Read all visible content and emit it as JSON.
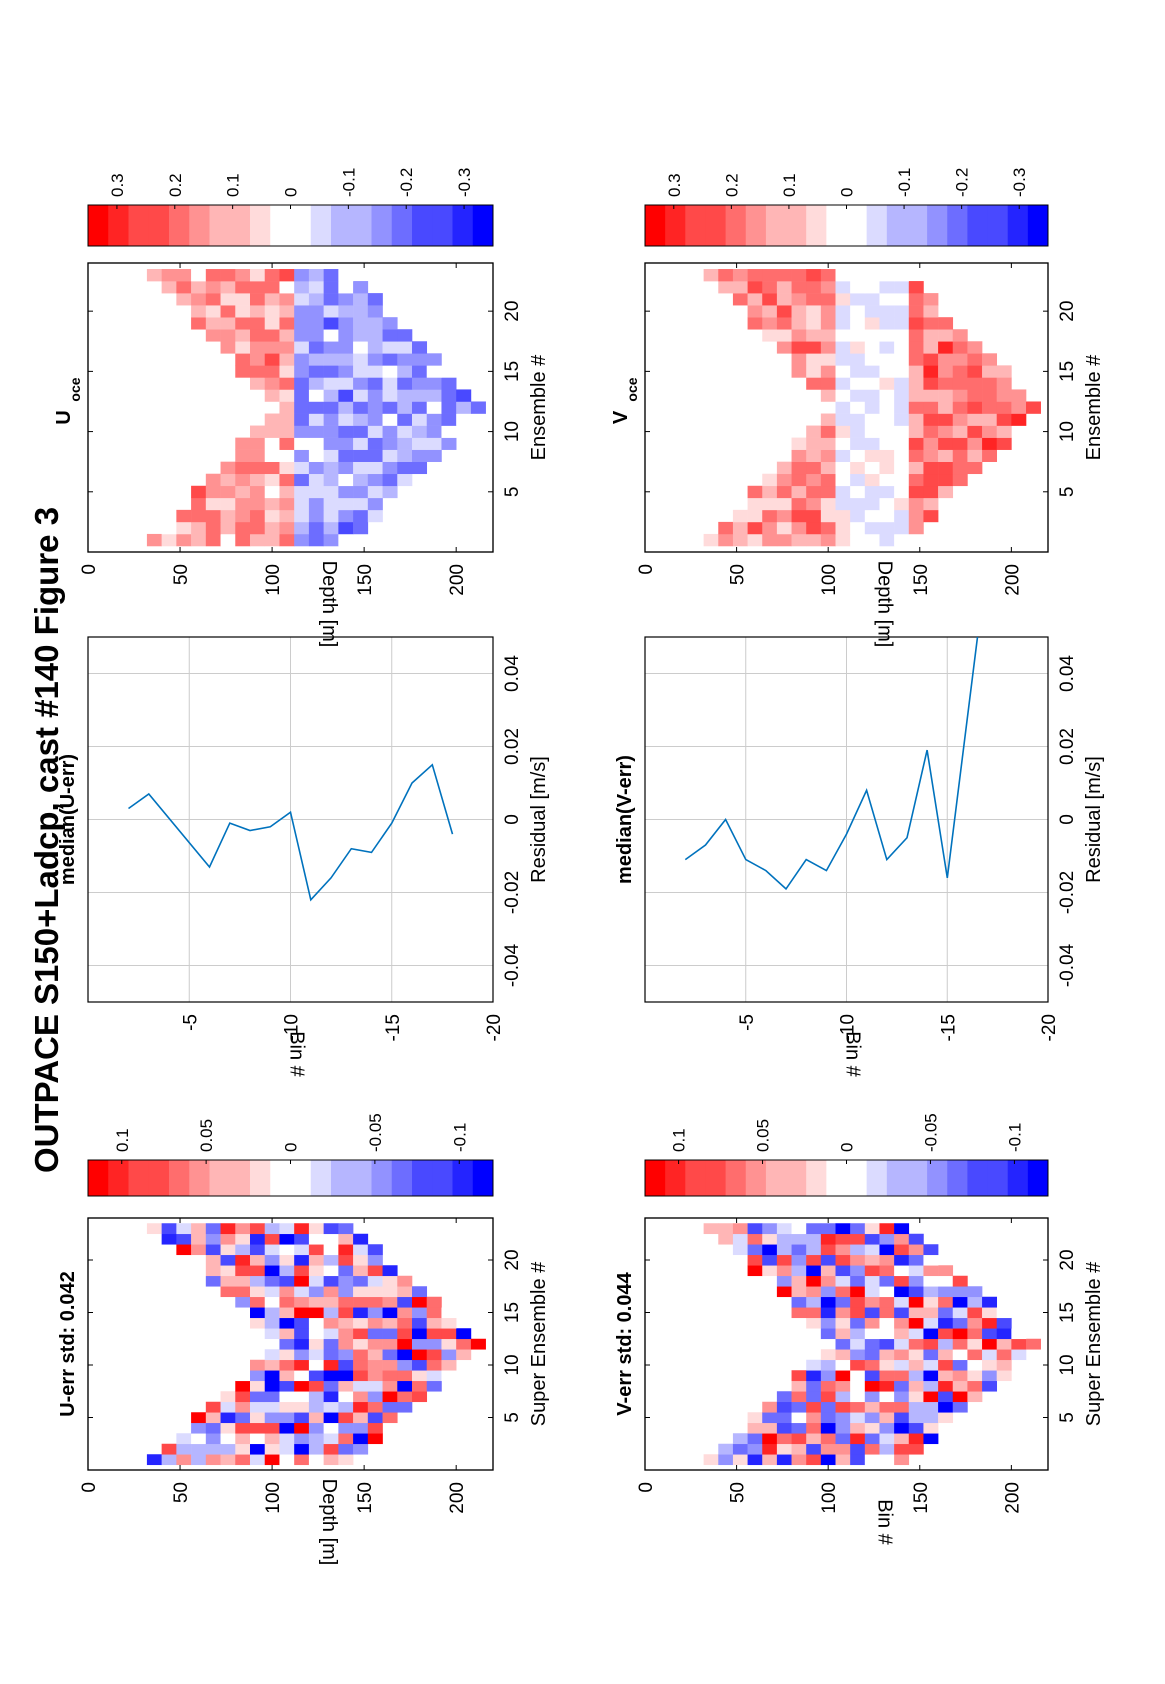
{
  "figure": {
    "title": "OUTPACE S150+Ladcp, cast #140  Figure 3"
  },
  "chart_data": [
    {
      "type": "heatmap",
      "id": "uerr",
      "title": "U-err std: 0.042",
      "xlabel": "Super Ensemble #",
      "ylabel": "Depth [m]",
      "xlim": [
        0,
        24
      ],
      "ylim": [
        0,
        220
      ],
      "xticks": [
        "5",
        "10",
        "15",
        "20"
      ],
      "yticks": [
        "0",
        "50",
        "100",
        "150",
        "200"
      ],
      "colorbar": {
        "min": -0.12,
        "max": 0.12,
        "ticks": [
          "0.1",
          "0.05",
          "0",
          "-0.05",
          "-0.1"
        ]
      }
    },
    {
      "type": "line",
      "id": "median-uerr",
      "title": "median(U-err)",
      "xlabel": "Residual [m/s]",
      "ylabel": "Bin #",
      "xlim": [
        -0.05,
        0.05
      ],
      "ylim": [
        -20,
        0
      ],
      "xticks": [
        "-0.04",
        "-0.02",
        "0",
        "0.02",
        "0.04"
      ],
      "yticks": [
        "-5",
        "-10",
        "-15",
        "-20"
      ],
      "series": [
        {
          "x": [
            0.003,
            0.007,
            -0.013,
            -0.001,
            -0.003,
            -0.002,
            0.002,
            -0.022,
            -0.016,
            -0.008,
            -0.009,
            -0.001,
            0.01,
            0.015,
            -0.004
          ],
          "y": [
            -2,
            -3,
            -6,
            -7,
            -8,
            -9,
            -10,
            -11,
            -12,
            -13,
            -14,
            -15,
            -16,
            -17,
            -18
          ]
        }
      ]
    },
    {
      "type": "heatmap",
      "id": "uoce",
      "title": "U",
      "title_subscript": "oce",
      "xlabel": "Ensemble #",
      "ylabel": "Depth [m]",
      "xlim": [
        0,
        24
      ],
      "ylim": [
        0,
        220
      ],
      "xticks": [
        "5",
        "10",
        "15",
        "20"
      ],
      "yticks": [
        "0",
        "50",
        "100",
        "150",
        "200"
      ],
      "colorbar": {
        "min": -0.35,
        "max": 0.35,
        "ticks": [
          "0.3",
          "0.2",
          "0.1",
          "0",
          "-0.1",
          "-0.2",
          "-0.3"
        ]
      }
    },
    {
      "type": "heatmap",
      "id": "verr",
      "title": "V-err std: 0.044",
      "xlabel": "Super Ensemble #",
      "ylabel": "Bin #",
      "xlim": [
        0,
        24
      ],
      "ylim": [
        0,
        220
      ],
      "xticks": [
        "5",
        "10",
        "15",
        "20"
      ],
      "yticks": [
        "0",
        "50",
        "100",
        "150",
        "200"
      ],
      "colorbar": {
        "min": -0.12,
        "max": 0.12,
        "ticks": [
          "0.1",
          "0.05",
          "0",
          "-0.05",
          "-0.1"
        ]
      }
    },
    {
      "type": "line",
      "id": "median-verr",
      "title": "median(V-err)",
      "xlabel": "Residual [m/s]",
      "ylabel": "Bin #",
      "xlim": [
        -0.05,
        0.05
      ],
      "ylim": [
        -20,
        0
      ],
      "xticks": [
        "-0.04",
        "-0.02",
        "0",
        "0.02",
        "0.04"
      ],
      "yticks": [
        "-5",
        "-10",
        "-15",
        "-20"
      ],
      "series": [
        {
          "x": [
            -0.011,
            -0.007,
            0.0,
            -0.011,
            -0.014,
            -0.019,
            -0.011,
            -0.014,
            -0.004,
            0.008,
            -0.011,
            -0.005,
            0.019,
            -0.016,
            0.05
          ],
          "y": [
            -2,
            -3,
            -4,
            -5,
            -6,
            -7,
            -8,
            -9,
            -10,
            -11,
            -12,
            -13,
            -14,
            -15,
            -16.5
          ]
        }
      ]
    },
    {
      "type": "heatmap",
      "id": "voce",
      "title": "V",
      "title_subscript": "oce",
      "xlabel": "Ensemble #",
      "ylabel": "Depth [m]",
      "xlim": [
        0,
        24
      ],
      "ylim": [
        0,
        220
      ],
      "xticks": [
        "5",
        "10",
        "15",
        "20"
      ],
      "yticks": [
        "0",
        "50",
        "100",
        "150",
        "200"
      ],
      "colorbar": {
        "min": -0.35,
        "max": 0.35,
        "ticks": [
          "0.3",
          "0.2",
          "0.1",
          "0",
          "-0.1",
          "-0.2",
          "-0.3"
        ]
      }
    }
  ]
}
